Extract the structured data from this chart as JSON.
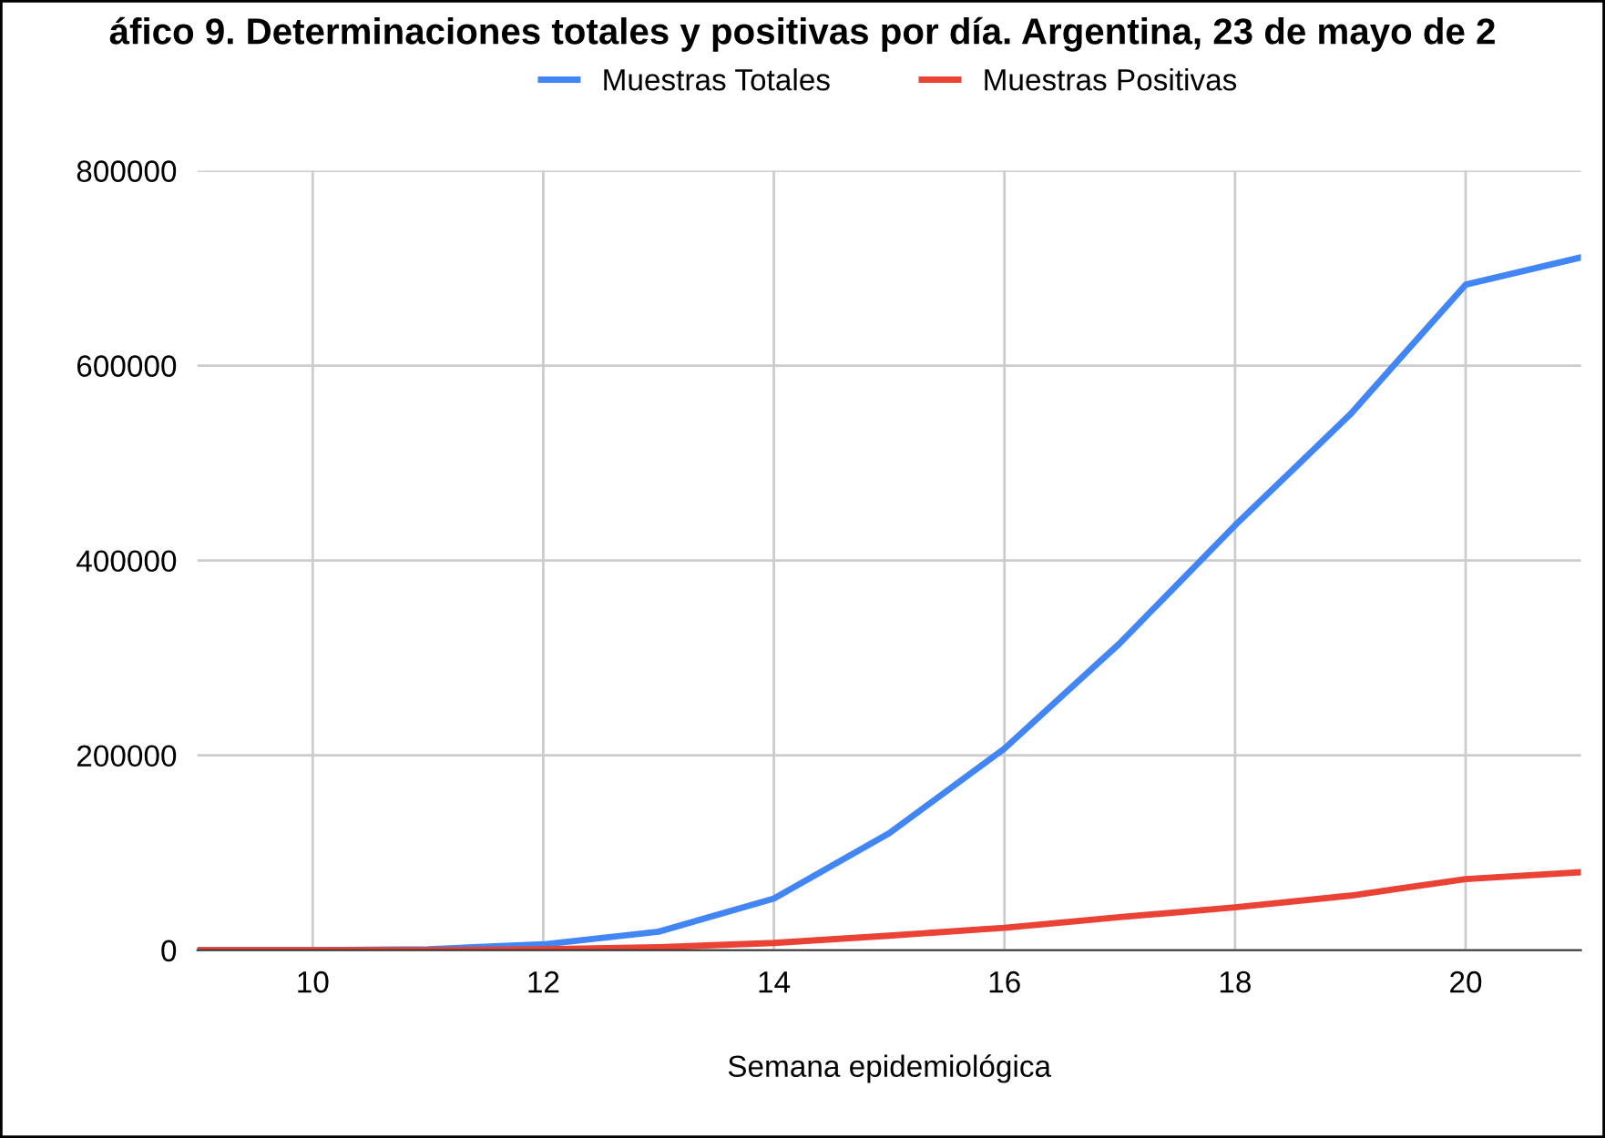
{
  "chart_data": {
    "type": "line",
    "title": "áfico 9. Determinaciones totales y positivas por día. Argentina, 23 de mayo de 2",
    "xlabel": "Semana epidemiológica",
    "x": [
      9,
      10,
      11,
      12,
      13,
      14,
      15,
      16,
      17,
      18,
      19,
      20,
      21
    ],
    "series": [
      {
        "name": "Muestras Totales",
        "color": "#4285f4",
        "values": [
          0,
          0,
          1000,
          6000,
          19000,
          53000,
          120000,
          207000,
          315000,
          436000,
          550000,
          683000,
          711000
        ]
      },
      {
        "name": "Muestras Positivas",
        "color": "#ea4335",
        "values": [
          0,
          0,
          0,
          1000,
          3000,
          7500,
          15000,
          23000,
          34000,
          44000,
          56000,
          73000,
          80000
        ]
      }
    ],
    "xlim": [
      9,
      21
    ],
    "xticks": [
      10,
      12,
      14,
      16,
      18,
      20
    ],
    "ylim": [
      0,
      800000
    ],
    "yticks": [
      0,
      200000,
      400000,
      600000,
      800000
    ],
    "grid": true,
    "legend": "top",
    "marker": "none",
    "line_style": "solid"
  }
}
